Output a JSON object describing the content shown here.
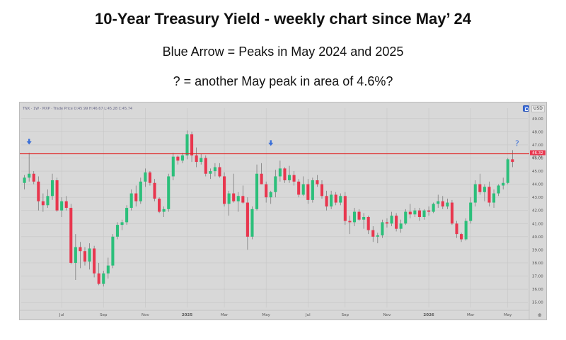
{
  "header": {
    "title": "10-Year Treasury Yield - weekly chart since May’ 24",
    "subtitle1": "Blue Arrow = Peaks in May 2024 and 2025",
    "subtitle2": "? = another May peak in area of 4.6%?"
  },
  "toolbar": {
    "symbol_text": "TNX · 1W · MXP · Trade Price  O:45.99  H:46.67  L:45.28  C:45.74",
    "currency": "USD",
    "corner_icon": "⊕"
  },
  "colors": {
    "background": "#d8d8d8",
    "grid": "#c6c6c6",
    "up": "#2bbf7a",
    "down": "#e8364e",
    "wick": "#6e6e6e",
    "hline": "#e02525",
    "arrow": "#3a6fd8",
    "price_badge": "#e8364e"
  },
  "chart_data": {
    "type": "candlestick",
    "timeframe": "weekly",
    "title": "",
    "xlabel": "",
    "ylabel": "",
    "ylim": [
      34.6,
      49.8
    ],
    "y_ticks": [
      "49.00",
      "48.00",
      "47.00",
      "46.00",
      "45.00",
      "44.00",
      "43.00",
      "42.00",
      "41.00",
      "40.00",
      "39.00",
      "38.00",
      "37.00",
      "36.00",
      "35.00"
    ],
    "x_ticks": [
      {
        "label": "Jul",
        "week": 8
      },
      {
        "label": "Sep",
        "week": 17
      },
      {
        "label": "Nov",
        "week": 26
      },
      {
        "label": "2025",
        "week": 35
      },
      {
        "label": "Mar",
        "week": 43
      },
      {
        "label": "May",
        "week": 52
      },
      {
        "label": "Jul",
        "week": 61
      },
      {
        "label": "Sep",
        "week": 69
      },
      {
        "label": "Nov",
        "week": 78
      },
      {
        "label": "2026",
        "week": 87
      },
      {
        "label": "Mar",
        "week": 96
      },
      {
        "label": "May",
        "week": 104
      }
    ],
    "current_price_label": "46.32",
    "current_price_sub": "45.74",
    "horizontal_line": 46.32,
    "peak_markers": [
      {
        "week": 1,
        "value": 46.7,
        "marker": "arrow"
      },
      {
        "week": 53,
        "value": 46.6,
        "marker": "arrow"
      },
      {
        "week": 106,
        "value": 46.6,
        "marker": "?"
      }
    ],
    "candles": [
      {
        "o": 44.1,
        "h": 44.7,
        "l": 43.6,
        "c": 44.5
      },
      {
        "o": 44.5,
        "h": 46.4,
        "l": 44.2,
        "c": 44.8
      },
      {
        "o": 44.8,
        "h": 45.0,
        "l": 44.0,
        "c": 44.2
      },
      {
        "o": 44.2,
        "h": 44.6,
        "l": 42.0,
        "c": 42.7
      },
      {
        "o": 42.7,
        "h": 43.3,
        "l": 41.9,
        "c": 42.4
      },
      {
        "o": 42.4,
        "h": 43.6,
        "l": 42.2,
        "c": 43.1
      },
      {
        "o": 43.1,
        "h": 44.8,
        "l": 42.8,
        "c": 44.3
      },
      {
        "o": 44.3,
        "h": 44.5,
        "l": 41.9,
        "c": 42.0
      },
      {
        "o": 42.0,
        "h": 43.0,
        "l": 41.5,
        "c": 42.7
      },
      {
        "o": 42.7,
        "h": 43.1,
        "l": 42.0,
        "c": 42.2
      },
      {
        "o": 42.2,
        "h": 42.5,
        "l": 37.9,
        "c": 38.0
      },
      {
        "o": 38.0,
        "h": 40.2,
        "l": 36.7,
        "c": 39.2
      },
      {
        "o": 39.2,
        "h": 39.6,
        "l": 37.6,
        "c": 38.9
      },
      {
        "o": 38.9,
        "h": 39.2,
        "l": 37.8,
        "c": 38.1
      },
      {
        "o": 38.1,
        "h": 39.5,
        "l": 37.5,
        "c": 39.1
      },
      {
        "o": 39.1,
        "h": 39.3,
        "l": 36.9,
        "c": 37.2
      },
      {
        "o": 37.2,
        "h": 38.0,
        "l": 36.3,
        "c": 36.4
      },
      {
        "o": 36.4,
        "h": 37.4,
        "l": 36.2,
        "c": 37.2
      },
      {
        "o": 37.2,
        "h": 38.4,
        "l": 36.8,
        "c": 37.8
      },
      {
        "o": 37.8,
        "h": 40.2,
        "l": 37.6,
        "c": 40.0
      },
      {
        "o": 40.0,
        "h": 41.1,
        "l": 39.8,
        "c": 40.9
      },
      {
        "o": 40.9,
        "h": 41.3,
        "l": 40.5,
        "c": 41.1
      },
      {
        "o": 41.1,
        "h": 42.4,
        "l": 40.9,
        "c": 42.2
      },
      {
        "o": 42.2,
        "h": 43.6,
        "l": 42.0,
        "c": 43.3
      },
      {
        "o": 43.3,
        "h": 43.9,
        "l": 42.3,
        "c": 42.7
      },
      {
        "o": 42.7,
        "h": 44.5,
        "l": 42.5,
        "c": 44.2
      },
      {
        "o": 44.2,
        "h": 45.2,
        "l": 43.8,
        "c": 44.9
      },
      {
        "o": 44.9,
        "h": 45.0,
        "l": 43.9,
        "c": 44.1
      },
      {
        "o": 44.1,
        "h": 44.4,
        "l": 42.7,
        "c": 42.9
      },
      {
        "o": 42.9,
        "h": 43.0,
        "l": 41.8,
        "c": 41.9
      },
      {
        "o": 41.9,
        "h": 42.3,
        "l": 41.5,
        "c": 42.1
      },
      {
        "o": 42.1,
        "h": 44.8,
        "l": 41.9,
        "c": 44.6
      },
      {
        "o": 44.6,
        "h": 46.4,
        "l": 44.3,
        "c": 46.1
      },
      {
        "o": 46.1,
        "h": 46.2,
        "l": 45.5,
        "c": 45.8
      },
      {
        "o": 45.8,
        "h": 46.4,
        "l": 45.6,
        "c": 46.2
      },
      {
        "o": 46.2,
        "h": 48.1,
        "l": 45.9,
        "c": 47.8
      },
      {
        "o": 47.8,
        "h": 48.0,
        "l": 45.7,
        "c": 46.2
      },
      {
        "o": 46.2,
        "h": 46.8,
        "l": 45.3,
        "c": 45.7
      },
      {
        "o": 45.7,
        "h": 46.3,
        "l": 45.5,
        "c": 46.0
      },
      {
        "o": 46.0,
        "h": 46.2,
        "l": 44.6,
        "c": 44.8
      },
      {
        "o": 44.8,
        "h": 45.2,
        "l": 44.4,
        "c": 45.0
      },
      {
        "o": 45.0,
        "h": 45.6,
        "l": 44.6,
        "c": 45.3
      },
      {
        "o": 45.3,
        "h": 45.6,
        "l": 44.5,
        "c": 44.6
      },
      {
        "o": 44.6,
        "h": 44.9,
        "l": 42.3,
        "c": 42.5
      },
      {
        "o": 42.5,
        "h": 43.5,
        "l": 41.6,
        "c": 43.3
      },
      {
        "o": 43.3,
        "h": 44.8,
        "l": 42.6,
        "c": 42.7
      },
      {
        "o": 42.7,
        "h": 43.4,
        "l": 41.9,
        "c": 43.1
      },
      {
        "o": 43.1,
        "h": 43.9,
        "l": 42.5,
        "c": 42.6
      },
      {
        "o": 42.6,
        "h": 43.0,
        "l": 39.0,
        "c": 40.0
      },
      {
        "o": 40.0,
        "h": 42.3,
        "l": 39.8,
        "c": 42.1
      },
      {
        "o": 42.1,
        "h": 45.5,
        "l": 42.0,
        "c": 44.8
      },
      {
        "o": 44.8,
        "h": 45.6,
        "l": 44.0,
        "c": 44.0
      },
      {
        "o": 44.0,
        "h": 44.2,
        "l": 42.6,
        "c": 43.0
      },
      {
        "o": 43.0,
        "h": 43.5,
        "l": 42.5,
        "c": 43.4
      },
      {
        "o": 43.4,
        "h": 45.1,
        "l": 43.0,
        "c": 44.6
      },
      {
        "o": 44.6,
        "h": 45.8,
        "l": 44.2,
        "c": 45.2
      },
      {
        "o": 45.2,
        "h": 45.3,
        "l": 44.1,
        "c": 44.3
      },
      {
        "o": 44.3,
        "h": 45.4,
        "l": 44.1,
        "c": 44.7
      },
      {
        "o": 44.7,
        "h": 45.0,
        "l": 43.9,
        "c": 44.2
      },
      {
        "o": 44.2,
        "h": 44.4,
        "l": 43.0,
        "c": 43.2
      },
      {
        "o": 43.2,
        "h": 44.6,
        "l": 43.1,
        "c": 44.0
      },
      {
        "o": 44.0,
        "h": 44.4,
        "l": 42.5,
        "c": 42.8
      },
      {
        "o": 42.8,
        "h": 44.5,
        "l": 42.6,
        "c": 44.3
      },
      {
        "o": 44.3,
        "h": 44.7,
        "l": 43.8,
        "c": 44.0
      },
      {
        "o": 44.0,
        "h": 44.3,
        "l": 42.9,
        "c": 43.1
      },
      {
        "o": 43.1,
        "h": 43.5,
        "l": 42.0,
        "c": 42.3
      },
      {
        "o": 42.3,
        "h": 43.5,
        "l": 42.1,
        "c": 43.2
      },
      {
        "o": 43.2,
        "h": 43.4,
        "l": 42.4,
        "c": 42.6
      },
      {
        "o": 42.6,
        "h": 43.3,
        "l": 42.4,
        "c": 43.1
      },
      {
        "o": 43.1,
        "h": 43.4,
        "l": 40.9,
        "c": 41.2
      },
      {
        "o": 41.2,
        "h": 41.6,
        "l": 40.2,
        "c": 41.1
      },
      {
        "o": 41.1,
        "h": 42.2,
        "l": 40.8,
        "c": 41.9
      },
      {
        "o": 41.9,
        "h": 42.1,
        "l": 41.2,
        "c": 41.3
      },
      {
        "o": 41.3,
        "h": 41.8,
        "l": 40.6,
        "c": 41.5
      },
      {
        "o": 41.5,
        "h": 41.6,
        "l": 40.2,
        "c": 40.5
      },
      {
        "o": 40.5,
        "h": 40.8,
        "l": 39.6,
        "c": 40.0
      },
      {
        "o": 40.0,
        "h": 40.3,
        "l": 39.5,
        "c": 40.1
      },
      {
        "o": 40.1,
        "h": 41.3,
        "l": 39.9,
        "c": 41.1
      },
      {
        "o": 41.1,
        "h": 41.4,
        "l": 40.7,
        "c": 41.0
      },
      {
        "o": 41.0,
        "h": 41.9,
        "l": 40.8,
        "c": 41.6
      },
      {
        "o": 41.6,
        "h": 41.8,
        "l": 40.4,
        "c": 40.6
      },
      {
        "o": 40.6,
        "h": 41.3,
        "l": 40.3,
        "c": 41.0
      },
      {
        "o": 41.0,
        "h": 42.1,
        "l": 40.9,
        "c": 41.9
      },
      {
        "o": 41.9,
        "h": 42.5,
        "l": 41.4,
        "c": 41.7
      },
      {
        "o": 41.7,
        "h": 42.2,
        "l": 41.5,
        "c": 42.0
      },
      {
        "o": 42.0,
        "h": 42.2,
        "l": 41.2,
        "c": 41.5
      },
      {
        "o": 41.5,
        "h": 42.1,
        "l": 41.3,
        "c": 42.0
      },
      {
        "o": 42.0,
        "h": 42.3,
        "l": 41.6,
        "c": 41.9
      },
      {
        "o": 41.9,
        "h": 42.6,
        "l": 41.8,
        "c": 42.5
      },
      {
        "o": 42.5,
        "h": 43.2,
        "l": 42.2,
        "c": 42.7
      },
      {
        "o": 42.7,
        "h": 43.1,
        "l": 42.1,
        "c": 42.3
      },
      {
        "o": 42.3,
        "h": 42.9,
        "l": 42.1,
        "c": 42.6
      },
      {
        "o": 42.6,
        "h": 42.8,
        "l": 40.9,
        "c": 41.0
      },
      {
        "o": 41.0,
        "h": 41.2,
        "l": 39.9,
        "c": 40.2
      },
      {
        "o": 40.2,
        "h": 40.3,
        "l": 39.6,
        "c": 39.8
      },
      {
        "o": 39.8,
        "h": 41.4,
        "l": 39.7,
        "c": 41.2
      },
      {
        "o": 41.2,
        "h": 43.0,
        "l": 41.0,
        "c": 42.6
      },
      {
        "o": 42.6,
        "h": 44.3,
        "l": 42.3,
        "c": 44.0
      },
      {
        "o": 44.0,
        "h": 44.8,
        "l": 43.2,
        "c": 43.4
      },
      {
        "o": 43.4,
        "h": 44.0,
        "l": 42.7,
        "c": 43.8
      },
      {
        "o": 43.8,
        "h": 44.2,
        "l": 42.3,
        "c": 42.6
      },
      {
        "o": 42.6,
        "h": 43.6,
        "l": 42.2,
        "c": 43.3
      },
      {
        "o": 43.3,
        "h": 44.0,
        "l": 43.1,
        "c": 43.9
      },
      {
        "o": 43.9,
        "h": 44.5,
        "l": 43.6,
        "c": 44.1
      },
      {
        "o": 44.1,
        "h": 46.0,
        "l": 44.0,
        "c": 45.9
      },
      {
        "o": 45.9,
        "h": 46.6,
        "l": 45.3,
        "c": 45.7
      }
    ]
  }
}
